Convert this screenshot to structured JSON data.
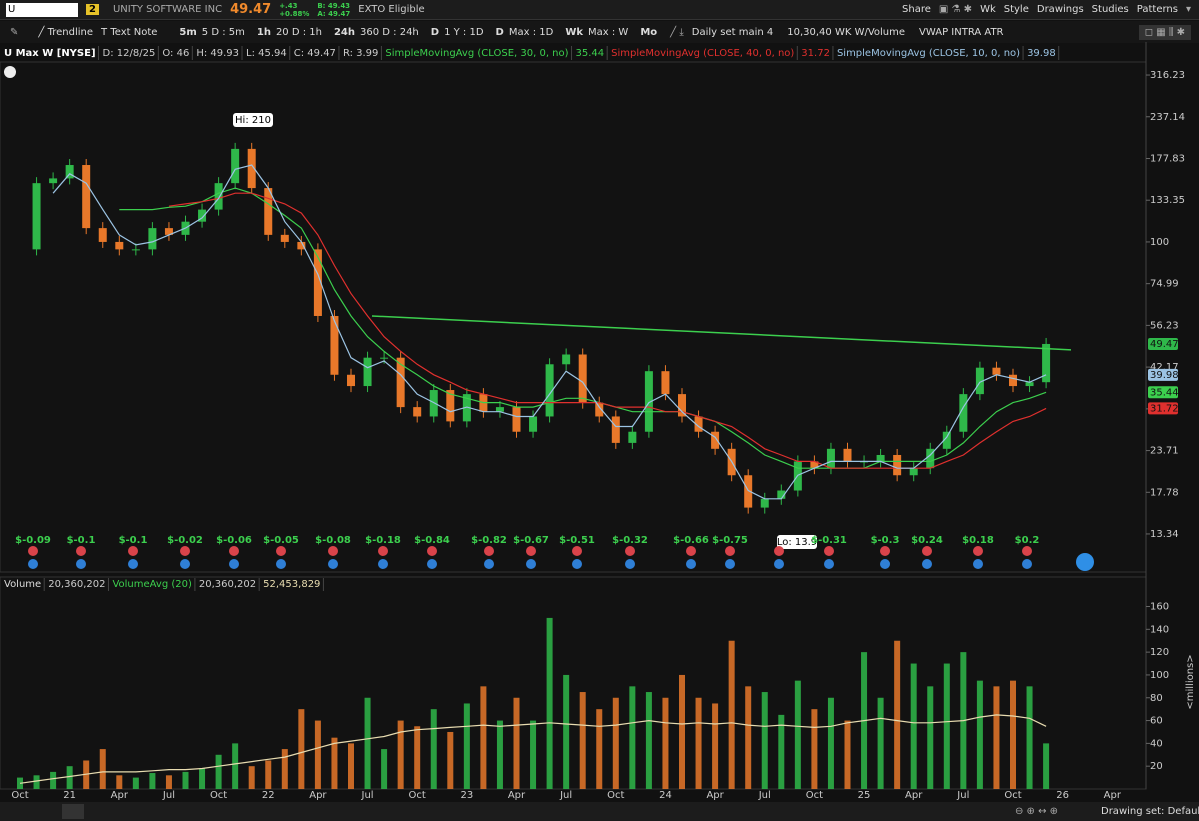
{
  "toolbar": {
    "symbol": "U",
    "link": "2",
    "company": "UNITY SOFTWARE INC",
    "last": "49.47",
    "change": "+.43",
    "change_pct": "+0.88%",
    "bid": "B: 49.43",
    "ask": "A: 49.47",
    "badge": "EXTO Eligible",
    "buttons": [
      "Share",
      "Wk",
      "Style",
      "Drawings",
      "Studies",
      "Patterns"
    ]
  },
  "toolbar2": {
    "tools": [
      "Trendline",
      "Text Note"
    ],
    "presets": [
      {
        "key": "5m",
        "label": "5 D : 5m"
      },
      {
        "key": "1h",
        "label": "20 D : 1h"
      },
      {
        "key": "24h",
        "label": "360 D : 24h"
      },
      {
        "key": "D",
        "label": "1 Y : 1D"
      },
      {
        "key": "D",
        "label": "Max : 1D"
      },
      {
        "key": "Wk",
        "label": "Max : W"
      },
      {
        "key": "Mo"
      }
    ],
    "sets": [
      "Daily set main 4",
      "10,30,40 WK W/Volume",
      "VWAP INTRA ATR"
    ]
  },
  "chart_data": [
    {
      "type": "candlestick",
      "title": "U Max W [NYSE]",
      "info": [
        "D: 12/8/25",
        "O: 46",
        "H: 49.93",
        "L: 45.94",
        "C: 49.47",
        "R: 3.99"
      ],
      "log_scale": true,
      "ylim": [
        10.26,
        346
      ],
      "yticks": [
        316.23,
        237.14,
        177.83,
        133.35,
        100,
        74.99,
        56.23,
        42.17,
        31.62,
        23.71,
        17.78,
        13.34
      ],
      "up_color": "#2fb84a",
      "down_color": "#e8782a",
      "last_label": "49.47",
      "values": [
        95,
        150,
        155,
        170,
        110,
        100,
        95,
        95,
        110,
        105,
        115,
        125,
        150,
        190,
        145,
        105,
        100,
        95,
        60,
        40,
        37,
        45,
        45,
        32,
        30,
        36,
        29,
        35,
        31,
        32,
        27,
        30,
        43,
        46,
        33,
        30,
        25,
        27,
        41,
        35,
        30,
        27,
        24,
        20,
        16,
        17,
        18,
        22,
        21,
        24,
        22,
        22,
        23,
        20,
        21,
        24,
        27,
        35,
        42,
        40,
        37,
        38,
        49.47
      ],
      "series": [
        {
          "name": "SimpleMovingAvg (CLOSE, 30, 0, no)",
          "color": "#3ccf4e",
          "last_label": "35.44",
          "values": [
            null,
            null,
            null,
            null,
            null,
            null,
            125,
            125,
            125,
            127,
            128,
            132,
            140,
            145,
            140,
            130,
            120,
            110,
            90,
            72,
            60,
            52,
            47,
            43,
            40,
            37,
            35,
            34,
            33,
            33,
            32,
            32,
            33,
            34,
            34,
            33,
            32,
            31,
            31,
            31,
            31,
            30,
            29,
            27,
            25,
            23,
            22,
            21,
            21,
            21,
            21,
            21,
            22,
            22,
            22,
            22,
            23,
            25,
            28,
            31,
            33,
            34,
            35.44
          ]
        },
        {
          "name": "SimpleMovingAvg (CLOSE, 40, 0, no)",
          "color": "#e0302e",
          "last_label": "31.72",
          "values": [
            null,
            null,
            null,
            null,
            null,
            null,
            null,
            null,
            null,
            128,
            130,
            132,
            135,
            140,
            140,
            135,
            130,
            122,
            105,
            85,
            70,
            60,
            52,
            47,
            43,
            40,
            38,
            36,
            35,
            34,
            33,
            33,
            33,
            33,
            33,
            33,
            32,
            32,
            32,
            31,
            31,
            30,
            29,
            28,
            26,
            24,
            23,
            22,
            22,
            21,
            21,
            21,
            21,
            21,
            21,
            21,
            22,
            23,
            25,
            27,
            29,
            30,
            31.72
          ]
        },
        {
          "name": "SimpleMovingAvg (CLOSE, 10, 0, no)",
          "color": "#9cc4e4",
          "last_label": "39.98",
          "values": [
            null,
            null,
            140,
            160,
            150,
            125,
            105,
            98,
            100,
            105,
            110,
            118,
            135,
            165,
            170,
            145,
            115,
            100,
            80,
            58,
            45,
            42,
            44,
            40,
            35,
            33,
            31,
            32,
            31,
            31,
            30,
            30,
            35,
            41,
            38,
            32,
            28,
            28,
            33,
            35,
            31,
            28,
            26,
            22,
            18,
            17,
            17,
            20,
            21,
            22,
            22,
            22,
            22,
            21,
            21,
            23,
            26,
            32,
            38,
            40,
            39,
            38,
            39.98
          ]
        }
      ],
      "trendline": {
        "color": "#3ccf4e",
        "values": [
          60,
          47.5
        ]
      },
      "annotations": [
        "Hi: 210",
        "Lo: 13.9"
      ],
      "earnings": [
        "$-0.09",
        "$-0.1",
        "$-0.1",
        "$-0.02",
        "$-0.06",
        "$-0.05",
        "$-0.08",
        "$-0.18",
        "$-0.84",
        "$-0.82",
        "$-0.67",
        "$-0.51",
        "$-0.32",
        "$-0.66",
        "$-0.75",
        "$-0.31",
        "$-0.3",
        "$0.24",
        "$0.18",
        "$0.2"
      ]
    },
    {
      "type": "bar",
      "title": "Volume",
      "info": "20,360,202",
      "ylim": [
        0,
        185
      ],
      "yticks": [
        160,
        140,
        120,
        100,
        80,
        60,
        40,
        20
      ],
      "y_label": "<millions>",
      "x_labels": [
        "Oct",
        "21",
        "Apr",
        "Jul",
        "Oct",
        "22",
        "Apr",
        "Jul",
        "Oct",
        "23",
        "Apr",
        "Jul",
        "Oct",
        "24",
        "Apr",
        "Jul",
        "Oct",
        "25",
        "Apr",
        "Jul",
        "Oct",
        "26",
        "Apr"
      ],
      "values": [
        10,
        12,
        15,
        20,
        25,
        35,
        12,
        10,
        14,
        12,
        15,
        18,
        30,
        40,
        20,
        25,
        35,
        70,
        60,
        45,
        40,
        80,
        35,
        60,
        55,
        70,
        50,
        75,
        90,
        60,
        80,
        60,
        150,
        100,
        85,
        70,
        80,
        90,
        85,
        80,
        100,
        80,
        75,
        130,
        90,
        85,
        65,
        95,
        70,
        80,
        60,
        120,
        80,
        130,
        110,
        90,
        110,
        120,
        95,
        90,
        95,
        90,
        40
      ],
      "series": [
        {
          "name": "VolumeAvg (20)",
          "color": "#e8dcb0",
          "last_labels": [
            "20,360,202",
            "52,453,829"
          ],
          "values": [
            5,
            7,
            9,
            11,
            13,
            15,
            15,
            15,
            16,
            17,
            17,
            18,
            20,
            22,
            24,
            26,
            28,
            32,
            36,
            40,
            42,
            44,
            46,
            50,
            52,
            53,
            54,
            55,
            56,
            55,
            56,
            57,
            58,
            57,
            56,
            55,
            56,
            58,
            60,
            58,
            57,
            58,
            57,
            58,
            56,
            55,
            56,
            55,
            54,
            55,
            58,
            60,
            62,
            60,
            58,
            58,
            59,
            60,
            63,
            65,
            64,
            62,
            55
          ]
        }
      ]
    }
  ],
  "status": {
    "drawing_set": "Drawing set: Default"
  }
}
